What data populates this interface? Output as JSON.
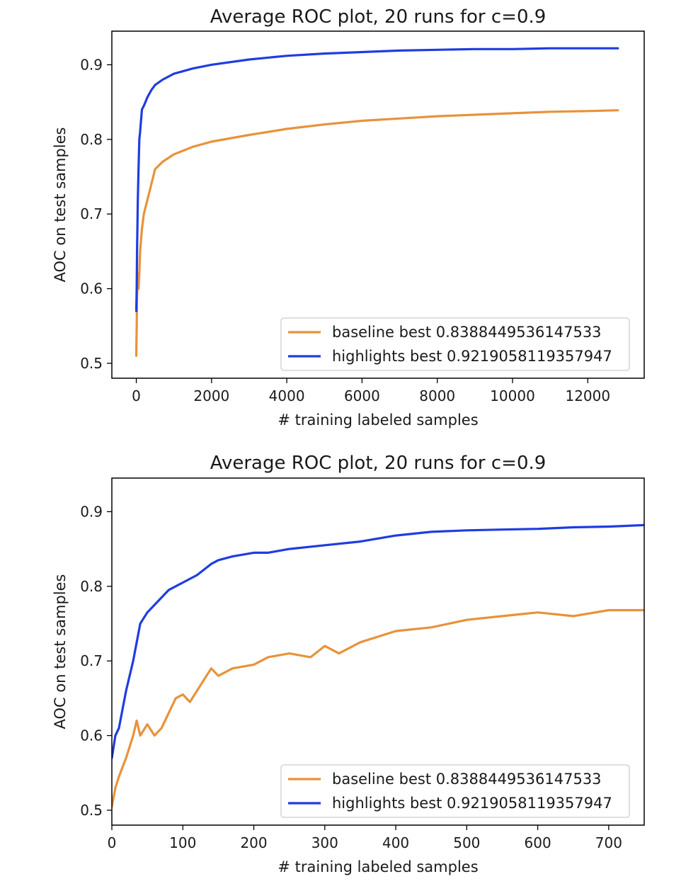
{
  "chart_data": [
    {
      "type": "line",
      "title": "Average ROC plot, 20 runs for c=0.9",
      "xlabel": "# training labeled samples",
      "ylabel": "AOC on test samples",
      "xlim": [
        -650,
        13500
      ],
      "ylim": [
        0.48,
        0.945
      ],
      "xticks": [
        0,
        2000,
        4000,
        6000,
        8000,
        10000,
        12000
      ],
      "yticks": [
        0.5,
        0.6,
        0.7,
        0.8,
        0.9
      ],
      "grid": false,
      "legend_position": "lower right",
      "series": [
        {
          "name": "baseline best 0.8388449536147533",
          "color": "#e8923a",
          "x": [
            0,
            10,
            20,
            40,
            60,
            80,
            100,
            150,
            200,
            300,
            400,
            500,
            700,
            1000,
            1500,
            2000,
            3000,
            4000,
            5000,
            6000,
            7000,
            8000,
            9000,
            10000,
            11000,
            12000,
            12800
          ],
          "y": [
            0.51,
            0.55,
            0.59,
            0.62,
            0.6,
            0.62,
            0.65,
            0.68,
            0.7,
            0.72,
            0.74,
            0.76,
            0.77,
            0.78,
            0.79,
            0.797,
            0.806,
            0.814,
            0.82,
            0.825,
            0.828,
            0.831,
            0.833,
            0.835,
            0.837,
            0.838,
            0.839
          ]
        },
        {
          "name": "highlights best 0.9219058119357947",
          "color": "#1f3de0",
          "x": [
            0,
            10,
            20,
            40,
            60,
            80,
            100,
            150,
            200,
            300,
            400,
            500,
            700,
            1000,
            1500,
            2000,
            3000,
            4000,
            5000,
            6000,
            7000,
            8000,
            9000,
            10000,
            11000,
            12000,
            12800
          ],
          "y": [
            0.57,
            0.6,
            0.65,
            0.72,
            0.76,
            0.8,
            0.81,
            0.84,
            0.845,
            0.857,
            0.866,
            0.873,
            0.88,
            0.888,
            0.895,
            0.9,
            0.907,
            0.912,
            0.915,
            0.917,
            0.919,
            0.92,
            0.921,
            0.921,
            0.922,
            0.922,
            0.922
          ]
        }
      ]
    },
    {
      "type": "line",
      "title": "Average ROC plot, 20 runs for c=0.9",
      "xlabel": "# training labeled samples",
      "ylabel": "AOC on test samples",
      "xlim": [
        0,
        750
      ],
      "ylim": [
        0.48,
        0.945
      ],
      "xticks": [
        0,
        100,
        200,
        300,
        400,
        500,
        600,
        700
      ],
      "yticks": [
        0.5,
        0.6,
        0.7,
        0.8,
        0.9
      ],
      "grid": false,
      "legend_position": "lower right",
      "series": [
        {
          "name": "baseline best 0.8388449536147533",
          "color": "#e8923a",
          "x": [
            0,
            5,
            10,
            20,
            30,
            35,
            40,
            50,
            60,
            70,
            80,
            90,
            100,
            110,
            120,
            130,
            140,
            150,
            170,
            200,
            220,
            250,
            280,
            300,
            320,
            350,
            400,
            450,
            500,
            550,
            600,
            650,
            700,
            750
          ],
          "y": [
            0.505,
            0.53,
            0.545,
            0.57,
            0.6,
            0.62,
            0.6,
            0.615,
            0.6,
            0.61,
            0.63,
            0.65,
            0.655,
            0.645,
            0.66,
            0.675,
            0.69,
            0.68,
            0.69,
            0.695,
            0.705,
            0.71,
            0.705,
            0.72,
            0.71,
            0.725,
            0.74,
            0.745,
            0.755,
            0.76,
            0.765,
            0.76,
            0.768,
            0.768
          ]
        },
        {
          "name": "highlights best 0.9219058119357947",
          "color": "#1f3de0",
          "x": [
            0,
            5,
            10,
            20,
            30,
            40,
            50,
            60,
            70,
            80,
            90,
            100,
            120,
            140,
            150,
            170,
            200,
            220,
            250,
            300,
            350,
            400,
            450,
            500,
            550,
            600,
            650,
            700,
            750
          ],
          "y": [
            0.57,
            0.6,
            0.61,
            0.66,
            0.7,
            0.75,
            0.765,
            0.775,
            0.785,
            0.795,
            0.8,
            0.805,
            0.815,
            0.83,
            0.835,
            0.84,
            0.845,
            0.845,
            0.85,
            0.855,
            0.86,
            0.868,
            0.873,
            0.875,
            0.876,
            0.877,
            0.879,
            0.88,
            0.882
          ]
        }
      ]
    }
  ]
}
